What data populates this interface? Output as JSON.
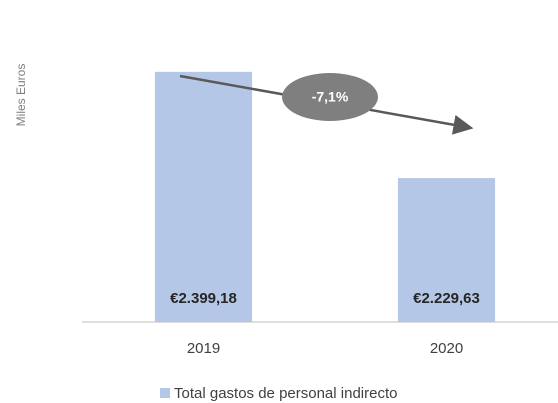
{
  "chart_data": {
    "type": "bar",
    "y_label": "Miles Euros",
    "categories": [
      "2019",
      "2020"
    ],
    "series": [
      {
        "name": "Total gastos de personal indirecto",
        "color": "#b4c7e7",
        "values": [
          2399.18,
          2229.63
        ]
      }
    ],
    "value_labels": [
      "€2.399,18",
      "€2.229,63"
    ],
    "ylim": [
      2000,
      2450
    ],
    "annotation": "-7,1%",
    "legend": "bottom"
  }
}
